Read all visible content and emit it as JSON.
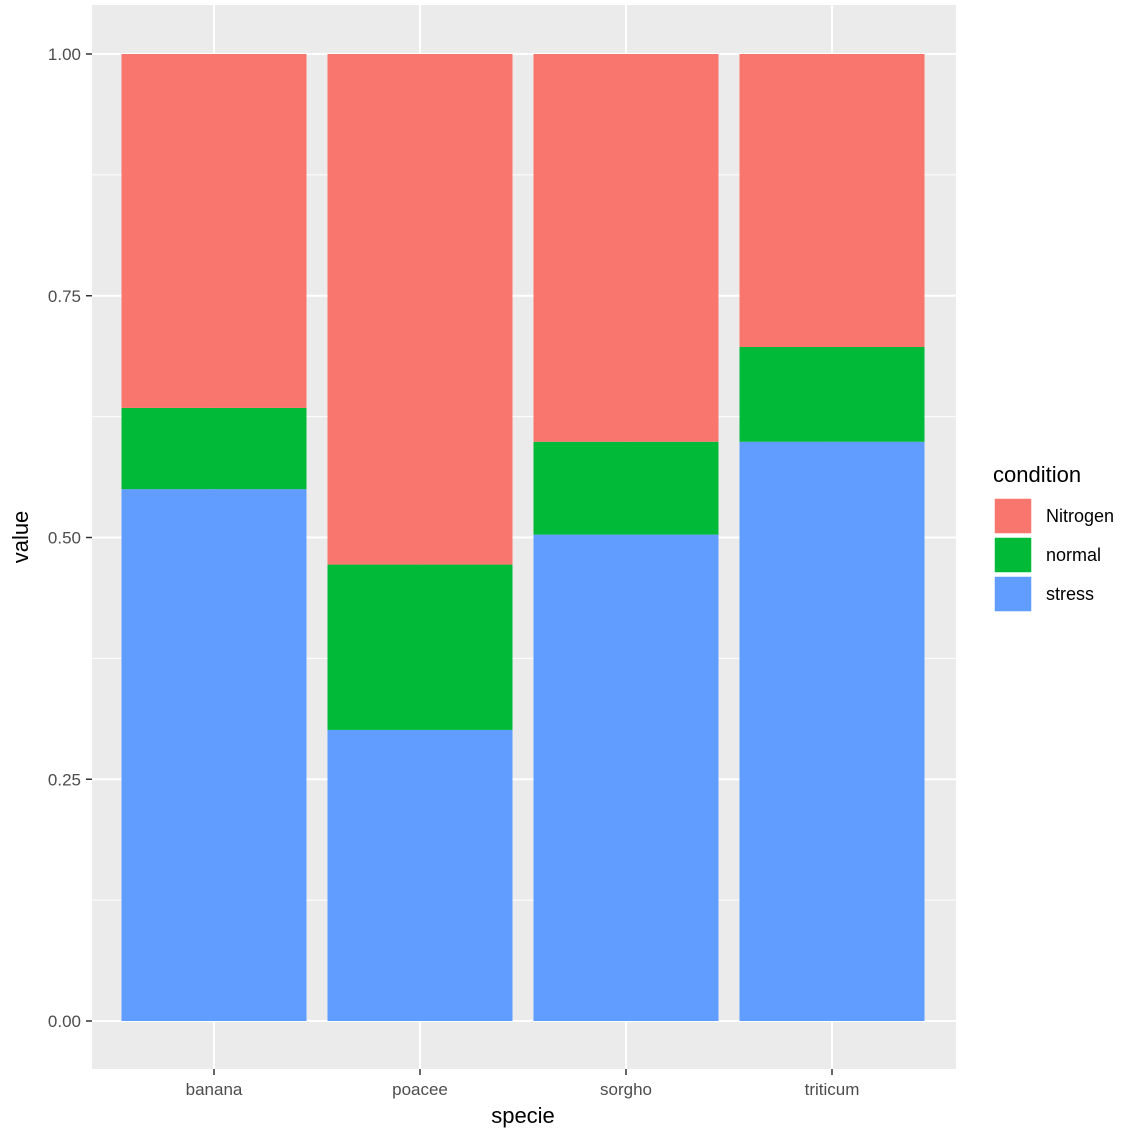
{
  "chart_data": {
    "type": "bar",
    "stacked": true,
    "categories": [
      "banana",
      "poacee",
      "sorgho",
      "triticum"
    ],
    "series": [
      {
        "name": "Nitrogen",
        "color": "#F8766D",
        "values": [
          0.366,
          0.528,
          0.401,
          0.303
        ]
      },
      {
        "name": "normal",
        "color": "#00BA38",
        "values": [
          0.084,
          0.171,
          0.096,
          0.098
        ]
      },
      {
        "name": "stress",
        "color": "#619CFF",
        "values": [
          0.55,
          0.301,
          0.503,
          0.599
        ]
      }
    ],
    "stack_order_bottom_to_top": [
      "stress",
      "normal",
      "Nitrogen"
    ],
    "xlabel": "specie",
    "ylabel": "value",
    "ylim": [
      0,
      1
    ],
    "yticks": [
      "0.00",
      "0.25",
      "0.50",
      "0.75",
      "1.00"
    ],
    "grid": true,
    "panel_background": "#EBEBEB",
    "legend": {
      "title": "condition",
      "position": "right"
    }
  }
}
